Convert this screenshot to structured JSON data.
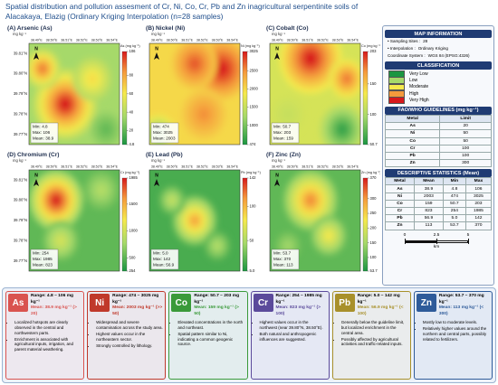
{
  "title": "Spatial distribution and pollution assesment of Cr, Ni, Co, Cr, Pb and Zn inagricultural serpentinite soils of Alacakaya, Elazig (Ordinary Kriging Interpolation (n=28 samples)",
  "unit": "mg kg⁻¹",
  "north": "N",
  "lon_labels": [
    "38.49°E",
    "38.50°E",
    "38.51°E",
    "38.52°E",
    "38.53°E",
    "38.54°E"
  ],
  "lat_labels": [
    "39.81°N",
    "39.80°N",
    "39.79°N",
    "39.78°N",
    "39.77°N"
  ],
  "stat_labels": [
    "Min:",
    "Max:",
    "Mean:"
  ],
  "panels": [
    {
      "title": "(A) Arsenic (As)",
      "colorbar_label": "As (mg kg⁻¹)",
      "colorbar_ticks": [
        4.8,
        20,
        40,
        60,
        80,
        106
      ],
      "stats": [
        4.8,
        106,
        38.9
      ]
    },
    {
      "title": "(B) Nickel (Ni)",
      "colorbar_label": "Ni (mg kg⁻¹)",
      "colorbar_ticks": [
        474,
        1000,
        1500,
        2000,
        2500,
        3025
      ],
      "stats": [
        474,
        3025,
        2003
      ]
    },
    {
      "title": "(C) Cobalt (Co)",
      "colorbar_label": "Co (mg kg⁻¹)",
      "colorbar_ticks": [
        50.7,
        100,
        150,
        203
      ],
      "stats": [
        50.7,
        203,
        159
      ]
    },
    {
      "title": "(D) Chromium (Cr)",
      "colorbar_label": "Cr (mg kg⁻¹)",
      "colorbar_ticks": [
        254,
        500,
        1000,
        1500,
        1985
      ],
      "stats": [
        254,
        1985,
        823
      ]
    },
    {
      "title": "(E) Lead (Pb)",
      "colorbar_label": "Pb (mg kg⁻¹)",
      "colorbar_ticks": [
        {
          "value": 5,
          "label": "5.0"
        },
        50,
        100,
        142
      ],
      "stats": [
        {
          "value": 5,
          "label": "5.0"
        },
        142,
        56.9
      ]
    },
    {
      "title": "(F) Zinc (Zn)",
      "colorbar_label": "Zn (mg kg⁻¹)",
      "colorbar_ticks": [
        53.7,
        100,
        150,
        200,
        250,
        300,
        370
      ],
      "stats": [
        53.7,
        370,
        113
      ]
    }
  ],
  "map_information": {
    "title": "MAP INFORMATION",
    "items": [
      {
        "label": "• Sampling Sites :",
        "value": 28
      },
      {
        "label": "• Interpolation :",
        "value": "Ordinary Kriging"
      },
      {
        "label": "Coordinate System :",
        "value": "WGS 84 (EPSG:4326)"
      }
    ]
  },
  "classification": {
    "title": "CLASSIFICATION",
    "classes": [
      {
        "name": "Very Low",
        "color": "#1a9641"
      },
      {
        "name": "Low",
        "color": "#a6d96a"
      },
      {
        "name": "Moderate",
        "color": "#f5e94c"
      },
      {
        "name": "High",
        "color": "#f59a3c"
      },
      {
        "name": "Very High",
        "color": "#d7191c"
      }
    ]
  },
  "guidelines": {
    "title": "FAO/WHO GUIDELINES (mg kg⁻¹)",
    "header": [
      "Metal",
      "Limit"
    ],
    "rows": [
      [
        "As",
        20
      ],
      [
        "Ni",
        50
      ],
      [
        "Co",
        50
      ],
      [
        "Cr",
        100
      ],
      [
        "Pb",
        100
      ],
      [
        "Zn",
        300
      ]
    ]
  },
  "statistics": {
    "title": "DESCRIPTIVE STATISTICS (Mean)",
    "header": [
      "Metal",
      "Mean",
      "Min",
      "Max"
    ],
    "rows": [
      [
        "As",
        38.9,
        4.8,
        106
      ],
      [
        "Ni",
        2003,
        474,
        3025
      ],
      [
        "Co",
        159,
        50.7,
        203
      ],
      [
        "Cr",
        823,
        254,
        1985
      ],
      [
        "Pb",
        56.9,
        "5.0",
        142
      ],
      [
        "Zn",
        113,
        53.7,
        370
      ]
    ]
  },
  "scale_bar": {
    "ticks": [
      0,
      2.5,
      5
    ],
    "unit": "km"
  },
  "cards": [
    {
      "symbol": "As",
      "color": "#d9534f",
      "range": "Range: 4.8 – 106 mg kg⁻¹",
      "mean": "Mean: 38.9 mg kg⁻¹ (> 20)",
      "bullets": [
        "Localized hotspots are clearly observed in the central and northwestern parts.",
        "Enrichment is associated with agricultural inputs, irrigation, and parent material weathering."
      ]
    },
    {
      "symbol": "Ni",
      "color": "#c0392b",
      "range": "Range: 474 – 3025 mg kg⁻¹",
      "mean": "Mean: 2003 mg kg⁻¹ (>> 50)",
      "bullets": [
        "Widespread and severe contamination across the study area.",
        "Highest values occur in the northeastern sector.",
        "Strongly controlled by lithology."
      ]
    },
    {
      "symbol": "Co",
      "color": "#3a9a3a",
      "range": "Range: 50.7 – 203 mg kg⁻¹",
      "mean": "Mean: 159 mg kg⁻¹ (> 50)",
      "bullets": [
        "Elevated concentrations in the north and northeast.",
        "Spatial pattern similar to Ni, indicating a common geogenic source."
      ]
    },
    {
      "symbol": "Cr",
      "color": "#5b4a9b",
      "range": "Range: 254 – 1985 mg kg⁻¹",
      "mean": "Mean: 823 mg kg⁻¹ (> 100)",
      "bullets": [
        "Highest values occur in the northwest (near 39.80°N, 38.50°E).",
        "Both natural and anthropogenic influences are suggested."
      ]
    },
    {
      "symbol": "Pb",
      "color": "#a8902a",
      "range": "Range: 5.0 – 142 mg kg⁻¹",
      "mean": "Mean: 56.9 mg kg⁻¹ (< 100)",
      "bullets": [
        "Generally below the guideline limit, but localized enrichment in the central area.",
        "Possibly affected by agricultural activities and traffic-related inputs."
      ]
    },
    {
      "symbol": "Zn",
      "color": "#2e5b9a",
      "range": "Range: 53.7 – 370 mg kg⁻¹",
      "mean": "Mean: 113 mg kg⁻¹ (< 300)",
      "bullets": [
        "Mostly low to moderate levels.",
        "Relatively higher values around the northern and central parts, possibly related to fertilizers."
      ]
    }
  ]
}
